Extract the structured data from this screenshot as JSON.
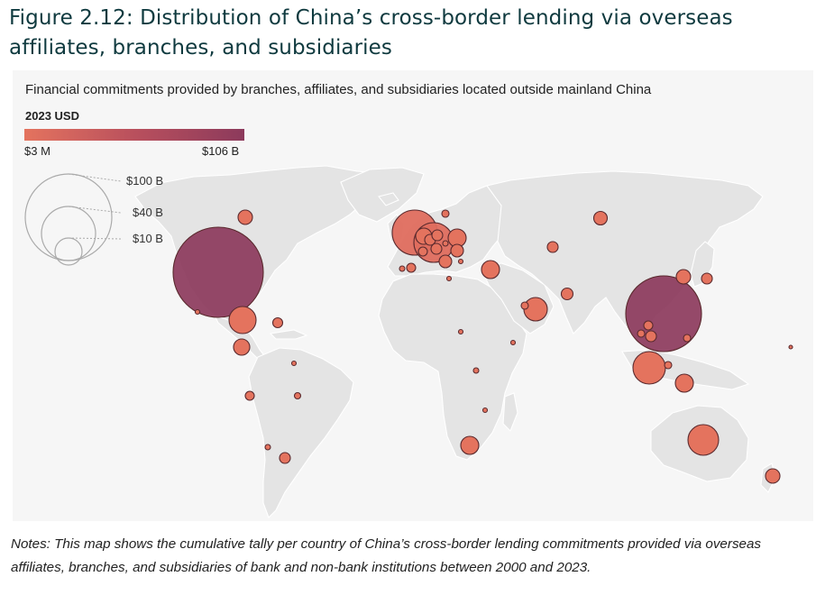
{
  "figure_title": "Figure 2.12: Distribution of China’s cross-border lending via overseas affiliates, branches, and subsidiaries",
  "subtitle": "Financial commitments provided by branches, affiliates, and subsidiaries located outside mainland China",
  "legend": {
    "title": "2023 USD",
    "min_label": "$3 M",
    "max_label": "$106 B",
    "color_min": "#e4735e",
    "color_max": "#8c3a5c",
    "size_labels": [
      "$100 B",
      "$40 B",
      "$10 B"
    ]
  },
  "notes": "Notes: This map shows the cumulative tally per country of China’s cross-border lending commitments provided via overseas affiliates, branches, and subsidiaries of bank and non-bank institutions between 2000 and 2023.",
  "colors": {
    "land": "#e4e4e4",
    "panel": "#f6f6f6",
    "title": "#0f3a3f"
  }
}
